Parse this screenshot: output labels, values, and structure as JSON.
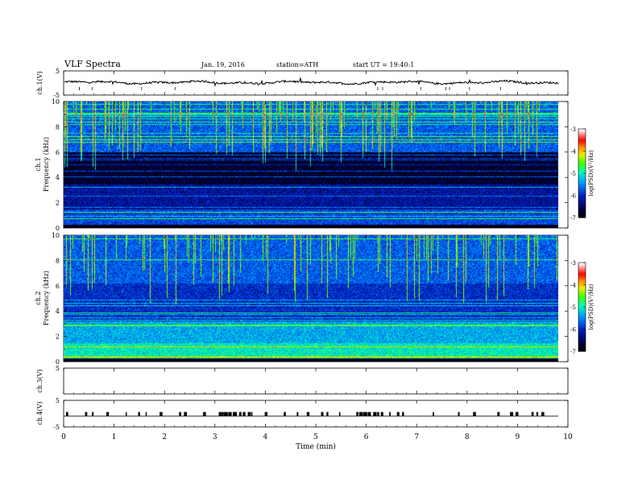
{
  "header": {
    "title": "VLF Spectra",
    "date": "Jan. 19, 2016",
    "station": "station=ATH",
    "start": "start  UT =   19:40:1"
  },
  "chart_data": [
    {
      "type": "line",
      "ylabel": "ch.1(V)",
      "ylim": [
        -5,
        5
      ],
      "yticks": [
        "5",
        "-5"
      ],
      "description": "near-constant trace slightly above 0 V with small noise and spikes"
    },
    {
      "type": "heatmap",
      "ylabel_top": "ch.1",
      "ylabel": "Frequency  (kHz)",
      "ylim": [
        0,
        10
      ],
      "yticks": [
        "0",
        "2",
        "4",
        "6",
        "8",
        "10"
      ],
      "colorbar": {
        "label": "log(PSD)(V²/Hz)",
        "ticks": [
          "-3",
          "-4",
          "-5",
          "-6",
          "-7"
        ],
        "range": [
          -7,
          -3
        ]
      }
    },
    {
      "type": "heatmap",
      "ylabel_top": "ch.2",
      "ylabel": "Frequency  (kHz)",
      "ylim": [
        0,
        10
      ],
      "yticks": [
        "0",
        "2",
        "4",
        "6",
        "8",
        "10"
      ],
      "colorbar": {
        "label": "log(PSD)(V²/Hz)",
        "ticks": [
          "-3",
          "-4",
          "-5",
          "-6",
          "-7"
        ],
        "range": [
          -7,
          -3
        ]
      }
    },
    {
      "type": "line",
      "ylabel": "ch.3(V)",
      "ylim": [
        -5,
        5
      ],
      "yticks": [
        "5"
      ]
    },
    {
      "type": "line",
      "ylabel": "ch.4(V)",
      "ylim": [
        -5,
        5
      ],
      "yticks": [
        "5",
        "-5"
      ]
    }
  ],
  "xaxis": {
    "label": "Time  (min)",
    "ticks": [
      "0",
      "1",
      "2",
      "3",
      "4",
      "5",
      "6",
      "7",
      "8",
      "9",
      "10"
    ],
    "range": [
      0,
      10
    ]
  }
}
